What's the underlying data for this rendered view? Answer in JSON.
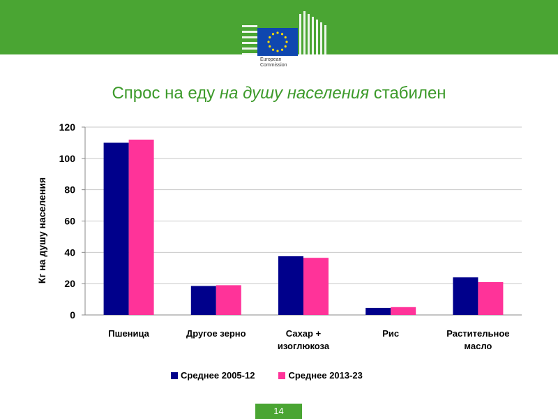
{
  "header": {
    "logo_line1": "European",
    "logo_line2": "Commission",
    "eu_blue": "#0f47af",
    "eu_star": "#ffdd00",
    "band_color": "#4aa533"
  },
  "title": {
    "part1": "Спрос на еду ",
    "part2_italic": "на душу населения",
    "part3": " стабилен"
  },
  "chart_data": {
    "type": "bar",
    "ylabel": "Кг на душу населения",
    "xlabel": "",
    "ylim": [
      0,
      120
    ],
    "yticks": [
      0,
      20,
      40,
      60,
      80,
      100,
      120
    ],
    "grid": true,
    "legend_position": "bottom",
    "categories": [
      [
        "Пшеница"
      ],
      [
        "Другое зерно"
      ],
      [
        "Сахар +",
        "изоглюкоза"
      ],
      [
        "Рис"
      ],
      [
        "Растительное",
        "масло"
      ]
    ],
    "series": [
      {
        "name": "Среднее 2005-12",
        "color": "#00008b",
        "values": [
          110,
          18.5,
          37.5,
          4.5,
          24
        ]
      },
      {
        "name": "Среднее 2013-23",
        "color": "#ff3399",
        "values": [
          112,
          19,
          36.5,
          5,
          21
        ]
      }
    ]
  },
  "footer": {
    "page_number": "14"
  }
}
